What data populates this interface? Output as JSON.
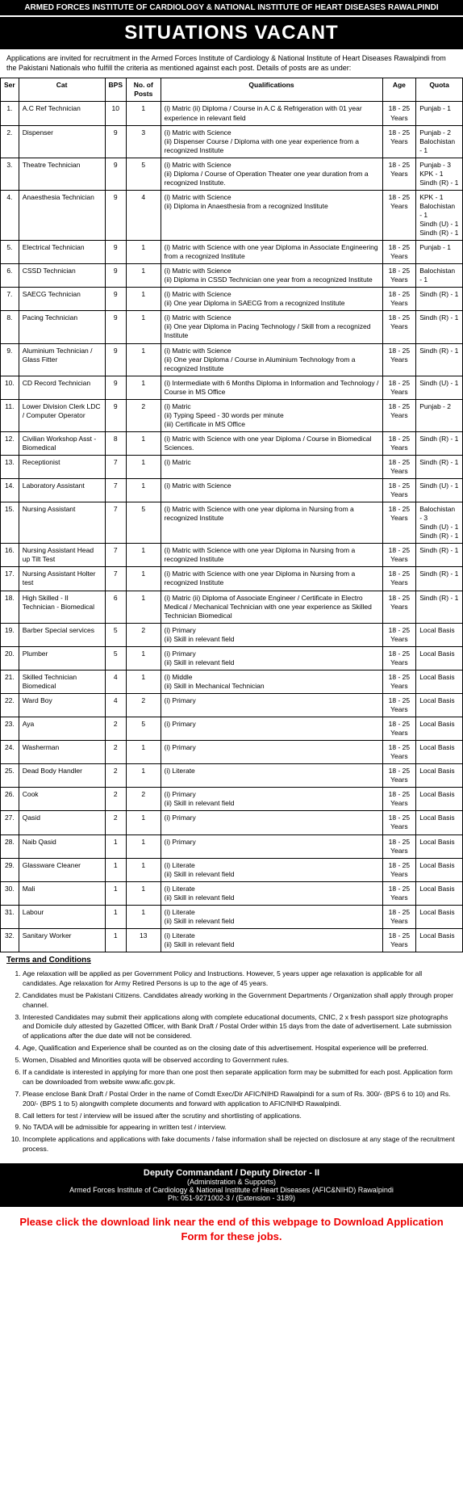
{
  "header": {
    "org": "ARMED FORCES INSTITUTE OF CARDIOLOGY & NATIONAL INSTITUTE OF HEART DISEASES RAWALPINDI",
    "title": "SITUATIONS VACANT",
    "intro": "Applications are invited for recruitment in the Armed Forces Institute of Cardiology & National Institute of Heart Diseases Rawalpindi from the Pakistani Nationals who fulfill the criteria as mentioned against each post. Details of posts are as under:"
  },
  "columns": [
    "Ser",
    "Cat",
    "BPS",
    "No. of Posts",
    "Qualifications",
    "Age",
    "Quota"
  ],
  "rows": [
    [
      "1.",
      "A.C Ref Technician",
      "10",
      "1",
      "(i) Matric (ii) Diploma / Course in A.C & Refrigeration with 01 year experience in relevant field",
      "18 - 25 Years",
      "Punjab - 1"
    ],
    [
      "2.",
      "Dispenser",
      "9",
      "3",
      "(i) Matric with Science\n(ii) Dispenser Course / Diploma with one year experience from a recognized Institute",
      "18 - 25 Years",
      "Punjab - 2\nBalochistan - 1"
    ],
    [
      "3.",
      "Theatre Technician",
      "9",
      "5",
      "(i) Matric with Science\n(ii) Diploma / Course of Operation Theater one year duration from a recognized Institute.",
      "18 - 25 Years",
      "Punjab - 3\nKPK - 1\nSindh (R) - 1"
    ],
    [
      "4.",
      "Anaesthesia Technician",
      "9",
      "4",
      "(i) Matric with Science\n(ii) Diploma in Anaesthesia from a recognized Institute",
      "18 - 25 Years",
      "KPK - 1\nBalochistan - 1\nSindh (U) - 1\nSindh (R) - 1"
    ],
    [
      "5.",
      "Electrical Technician",
      "9",
      "1",
      "(i) Matric with Science with one year Diploma in Associate Engineering from a recognized Institute",
      "18 - 25 Years",
      "Punjab - 1"
    ],
    [
      "6.",
      "CSSD Technician",
      "9",
      "1",
      "(i) Matric with Science\n(ii) Diploma in CSSD Technician one year from a recognized Institute",
      "18 - 25 Years",
      "Balochistan - 1"
    ],
    [
      "7.",
      "SAECG Technician",
      "9",
      "1",
      "(i) Matric with Science\n(ii) One year Diploma in SAECG from a recognized Institute",
      "18 - 25 Years",
      "Sindh (R) - 1"
    ],
    [
      "8.",
      "Pacing Technician",
      "9",
      "1",
      "(i) Matric with Science\n(ii) One year Diploma in Pacing Technology / Skill from a recognized Institute",
      "18 - 25 Years",
      "Sindh (R) - 1"
    ],
    [
      "9.",
      "Aluminium Technician / Glass Fitter",
      "9",
      "1",
      "(i) Matric with Science\n(ii) One year Diploma / Course in Aluminium Technology from a recognized Institute",
      "18 - 25 Years",
      "Sindh (R) - 1"
    ],
    [
      "10.",
      "CD Record Technician",
      "9",
      "1",
      "(i) Intermediate with 6 Months Diploma in Information and Technology / Course in MS Office",
      "18 - 25 Years",
      "Sindh (U) - 1"
    ],
    [
      "11.",
      "Lower Division Clerk LDC / Computer Operator",
      "9",
      "2",
      "(i) Matric\n(ii) Typing Speed - 30 words per minute\n(iii) Certificate in MS Office",
      "18 - 25 Years",
      "Punjab - 2"
    ],
    [
      "12.",
      "Civilian Workshop Asst - Biomedical",
      "8",
      "1",
      "(i) Matric with Science with one year Diploma / Course in Biomedical Sciences.",
      "18 - 25 Years",
      "Sindh (R) - 1"
    ],
    [
      "13.",
      "Receptionist",
      "7",
      "1",
      "(i) Matric",
      "18 - 25 Years",
      "Sindh (R) - 1"
    ],
    [
      "14.",
      "Laboratory Assistant",
      "7",
      "1",
      "(i) Matric with Science",
      "18 - 25 Years",
      "Sindh (U) - 1"
    ],
    [
      "15.",
      "Nursing Assistant",
      "7",
      "5",
      "(i) Matric with Science with one year diploma in Nursing from a recognized Institute",
      "18 - 25 Years",
      "Balochistan - 3\nSindh (U) - 1\nSindh (R) - 1"
    ],
    [
      "16.",
      "Nursing Assistant Head up Tilt Test",
      "7",
      "1",
      "(i) Matric with Science with one year Diploma in Nursing from a recognized Institute",
      "18 - 25 Years",
      "Sindh (R) - 1"
    ],
    [
      "17.",
      "Nursing Assistant Holter test",
      "7",
      "1",
      "(i) Matric with Science with one year Diploma in Nursing from a recognized Institute",
      "18 - 25 Years",
      "Sindh (R) - 1"
    ],
    [
      "18.",
      "High Skilled - II Technician - Biomedical",
      "6",
      "1",
      "(i) Matric (ii) Diploma of Associate Engineer / Certificate in Electro Medical / Mechanical Technician with one year experience as Skilled Technician Biomedical",
      "18 - 25 Years",
      "Sindh (R) - 1"
    ],
    [
      "19.",
      "Barber Special services",
      "5",
      "2",
      "(i) Primary\n(ii) Skill in relevant field",
      "18 - 25 Years",
      "Local Basis"
    ],
    [
      "20.",
      "Plumber",
      "5",
      "1",
      "(i) Primary\n(ii) Skill in relevant field",
      "18 - 25 Years",
      "Local Basis"
    ],
    [
      "21.",
      "Skilled Technician Biomedical",
      "4",
      "1",
      "(i) Middle\n(ii) Skill in Mechanical Technician",
      "18 - 25 Years",
      "Local Basis"
    ],
    [
      "22.",
      "Ward Boy",
      "4",
      "2",
      "(i) Primary",
      "18 - 25 Years",
      "Local Basis"
    ],
    [
      "23.",
      "Aya",
      "2",
      "5",
      "(i) Primary",
      "18 - 25 Years",
      "Local Basis"
    ],
    [
      "24.",
      "Washerman",
      "2",
      "1",
      "(i) Primary",
      "18 - 25 Years",
      "Local Basis"
    ],
    [
      "25.",
      "Dead Body Handler",
      "2",
      "1",
      "(i) Literate",
      "18 - 25 Years",
      "Local Basis"
    ],
    [
      "26.",
      "Cook",
      "2",
      "2",
      "(i) Primary\n(ii) Skill in relevant field",
      "18 - 25 Years",
      "Local Basis"
    ],
    [
      "27.",
      "Qasid",
      "2",
      "1",
      "(i) Primary",
      "18 - 25 Years",
      "Local Basis"
    ],
    [
      "28.",
      "Naib Qasid",
      "1",
      "1",
      "(i) Primary",
      "18 - 25 Years",
      "Local Basis"
    ],
    [
      "29.",
      "Glassware Cleaner",
      "1",
      "1",
      "(i) Literate\n(ii) Skill in relevant field",
      "18 - 25 Years",
      "Local Basis"
    ],
    [
      "30.",
      "Mali",
      "1",
      "1",
      "(i) Literate\n(ii) Skill in relevant field",
      "18 - 25 Years",
      "Local Basis"
    ],
    [
      "31.",
      "Labour",
      "1",
      "1",
      "(i) Literate\n(ii) Skill in relevant field",
      "18 - 25 Years",
      "Local Basis"
    ],
    [
      "32.",
      "Sanitary Worker",
      "1",
      "13",
      "(i) Literate\n(ii) Skill in relevant field",
      "18 - 25 Years",
      "Local Basis"
    ]
  ],
  "terms": {
    "heading": "Terms and Conditions",
    "items": [
      "Age relaxation will be applied as per Government Policy and Instructions. However, 5 years upper age relaxation is applicable for all candidates. Age relaxation for Army Retired Persons is up to the age of 45 years.",
      "Candidates must be Pakistani Citizens. Candidates already working in the Government Departments / Organization shall apply through proper channel.",
      "Interested Candidates may submit their applications along with complete educational documents, CNIC, 2 x fresh passport size photographs and Domicile duly attested by Gazetted Officer, with Bank Draft / Postal Order within 15 days from the date of advertisement. Late submission of applications after the due date will not be considered.",
      "Age, Qualification and Experience shall be counted as on the closing date of this advertisement. Hospital experience will be preferred.",
      "Women, Disabled and Minorities quota will be observed according to Government rules.",
      "If a candidate is interested in applying for more than one post then separate application form may be submitted for each post. Application form can be downloaded from website www.afic.gov.pk.",
      "Please enclose Bank Draft / Postal Order in the name of Comdt Exec/Dir AFIC/NIHD Rawalpindi for a sum of Rs. 300/- (BPS 6 to 10) and Rs. 200/- (BPS 1 to 5) alongwith complete documents and forward with application to AFIC/NIHD Rawalpindi.",
      "Call letters for test / interview will be issued after the scrutiny and shortlisting of applications.",
      "No TA/DA will be admissible for appearing in written test / interview.",
      "Incomplete applications and applications with fake documents / false information shall be rejected on disclosure at any stage of the recruitment process."
    ]
  },
  "footer": {
    "role": "Deputy Commandant / Deputy Director - II",
    "dept": "(Administration & Supports)",
    "org": "Armed Forces Institute of Cardiology & National Institute of Heart Diseases (AFIC&NIHD) Rawalpindi",
    "phone": "Ph: 051-9271002-3 / (Extension - 3189)"
  },
  "download_note": "Please click the download link near the end of this webpage to Download Application Form for these jobs."
}
